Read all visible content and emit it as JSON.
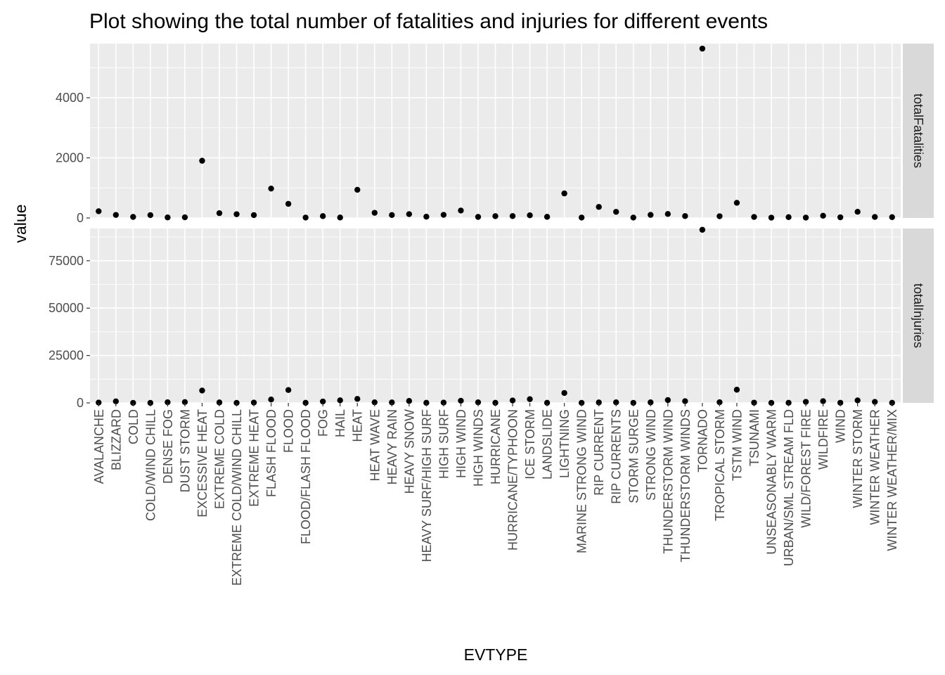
{
  "chart_data": {
    "type": "scatter",
    "title": "Plot showing the total number of fatalities and injuries for different events",
    "xlabel": "EVTYPE",
    "ylabel": "value",
    "grid": true,
    "legend": "none",
    "colors": {
      "panel_background": "#ebebeb",
      "grid_major": "#ffffff",
      "strip_background": "#d9d9d9",
      "point": "#000000",
      "tick_label": "#4d4d4d"
    },
    "categories": [
      "AVALANCHE",
      "BLIZZARD",
      "COLD",
      "COLD/WIND CHILL",
      "DENSE FOG",
      "DUST STORM",
      "EXCESSIVE HEAT",
      "EXTREME COLD",
      "EXTREME COLD/WIND CHILL",
      "EXTREME HEAT",
      "FLASH FLOOD",
      "FLOOD",
      "FLOOD/FLASH FLOOD",
      "FOG",
      "HAIL",
      "HEAT",
      "HEAT WAVE",
      "HEAVY RAIN",
      "HEAVY SNOW",
      "HEAVY SURF/HIGH SURF",
      "HIGH SURF",
      "HIGH WIND",
      "HIGH WINDS",
      "HURRICANE",
      "HURRICANE/TYPHOON",
      "ICE STORM",
      "LANDSLIDE",
      "LIGHTNING",
      "MARINE STRONG WIND",
      "RIP CURRENT",
      "RIP CURRENTS",
      "STORM SURGE",
      "STRONG WIND",
      "THUNDERSTORM WIND",
      "THUNDERSTORM WINDS",
      "TORNADO",
      "TROPICAL STORM",
      "TSTM WIND",
      "TSUNAMI",
      "UNSEASONABLY WARM",
      "URBAN/SML STREAM FLD",
      "WILD/FOREST FIRE",
      "WILDFIRE",
      "WIND",
      "WINTER STORM",
      "WINTER WEATHER",
      "WINTER WEATHER/MIX"
    ],
    "series": [
      {
        "name": "totalFatalities",
        "ylim": [
          0,
          5800
        ],
        "y_ticks": [
          0,
          2000,
          4000
        ],
        "y_tick_labels": [
          "0",
          "2000",
          "4000"
        ],
        "values": [
          224,
          101,
          35,
          95,
          18,
          22,
          1903,
          160,
          125,
          96,
          978,
          470,
          14,
          62,
          15,
          937,
          172,
          98,
          127,
          42,
          104,
          248,
          35,
          61,
          64,
          89,
          38,
          816,
          14,
          368,
          204,
          13,
          103,
          133,
          64,
          5633,
          58,
          504,
          33,
          11,
          28,
          12,
          75,
          23,
          206,
          33,
          28
        ]
      },
      {
        "name": "totalInjuries",
        "ylim": [
          0,
          92000
        ],
        "y_ticks": [
          0,
          25000,
          50000,
          75000
        ],
        "y_tick_labels": [
          "0",
          "25000",
          "50000",
          "75000"
        ],
        "values": [
          170,
          805,
          24,
          12,
          342,
          440,
          6525,
          231,
          24,
          155,
          1777,
          6789,
          43,
          734,
          1361,
          2100,
          309,
          251,
          1021,
          48,
          156,
          1137,
          302,
          46,
          1275,
          1975,
          52,
          5230,
          22,
          232,
          297,
          38,
          280,
          1488,
          908,
          91346,
          340,
          6957,
          129,
          17,
          79,
          545,
          911,
          86,
          1321,
          538,
          77
        ]
      }
    ]
  }
}
